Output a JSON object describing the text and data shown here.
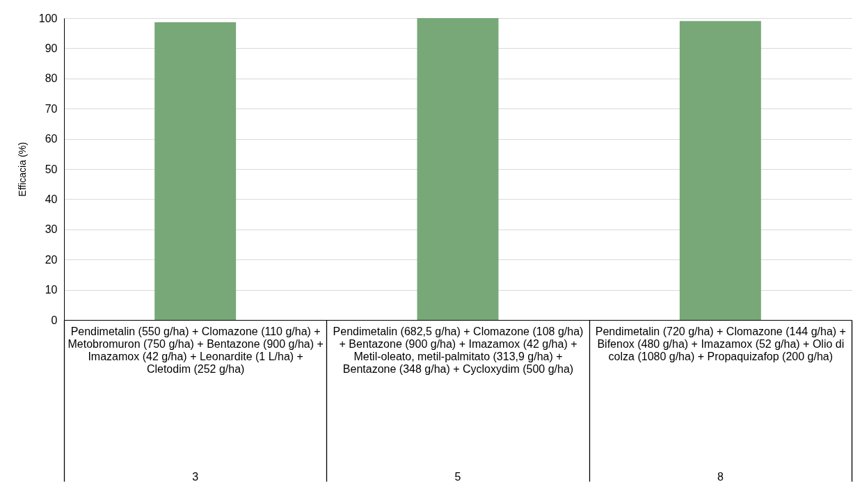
{
  "chart_data": {
    "type": "bar",
    "ylabel": "Efficacia (%)",
    "categories": [
      "Pendimetalin (550 g/ha) + Clomazone (110 g/ha) + Metobromuron (750 g/ha) + Bentazone (900 g/ha) + Imazamox (42 g/ha) + Leonardite (1 L/ha) + Cletodim (252 g/ha)",
      "Pendimetalin (682,5 g/ha) + Clomazone (108 g/ha) + Bentazone (900 g/ha) + Imazamox (42 g/ha) + Metil-oleato, metil-palmitato (313,9 g/ha) + Bentazone (348 g/ha) + Cycloxydim (500 g/ha)",
      "Pendimetalin (720 g/ha) + Clomazone (144 g/ha) + Bifenox (480 g/ha) + Imazamox (52 g/ha) + Olio di colza (1080 g/ha) + Propaquizafop (200 g/ha)"
    ],
    "values": [
      98.6,
      100,
      99
    ],
    "color": "#78a878",
    "annotations": [
      "3",
      "5",
      "8"
    ],
    "ylim": [
      0,
      100
    ],
    "yticks": [
      0,
      10,
      20,
      30,
      40,
      50,
      60,
      70,
      80,
      90,
      100
    ],
    "grid": "y"
  }
}
